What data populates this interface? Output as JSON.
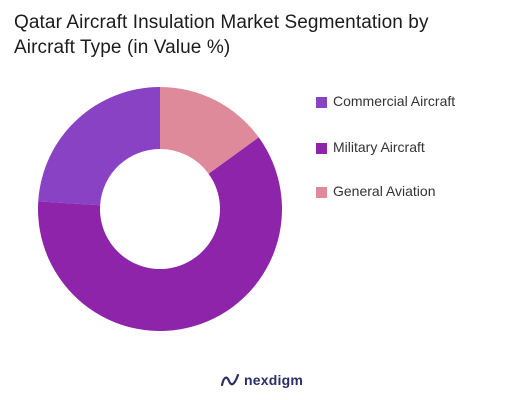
{
  "title_lines": [
    "Qatar Aircraft Insulation Market Segmentation by",
    "Aircraft Type (in Value %)"
  ],
  "chart_data": {
    "type": "pie",
    "title": "Qatar Aircraft Insulation Market Segmentation by Aircraft Type (in Value %)",
    "categories": [
      "Commercial Aircraft",
      "Military Aircraft",
      "General Aviation"
    ],
    "values": [
      24,
      61,
      15
    ],
    "colors": [
      "#8a42c4",
      "#8e24aa",
      "#de8a9a"
    ],
    "legend_position": "right"
  },
  "footer": {
    "brand": "nexdigm",
    "brand_icon": "nexdigm-logo-icon"
  }
}
